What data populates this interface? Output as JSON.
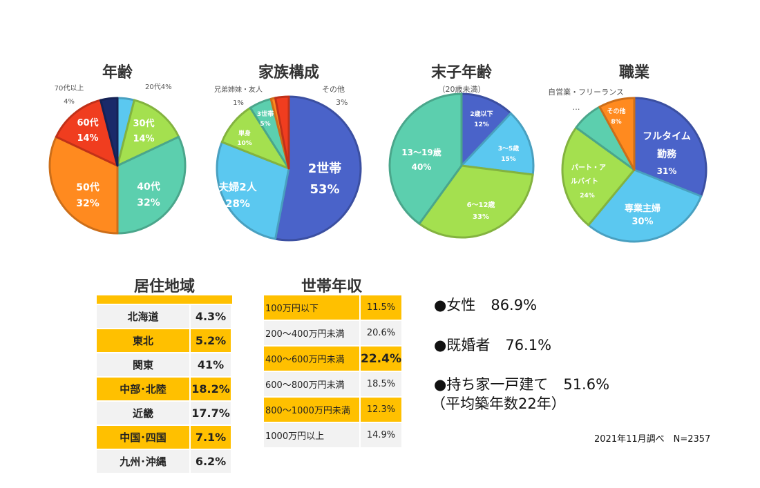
{
  "chart_data": [
    {
      "type": "pie",
      "title": "年齢",
      "slices": [
        {
          "label": "20代",
          "value": 4,
          "pct": "4%",
          "color": "#5bc8f0"
        },
        {
          "label": "30代",
          "value": 14,
          "pct": "14%",
          "color": "#a4e04f"
        },
        {
          "label": "40代",
          "value": 32,
          "pct": "32%",
          "color": "#5ccfae"
        },
        {
          "label": "50代",
          "value": 32,
          "pct": "32%",
          "color": "#ff8a1f"
        },
        {
          "label": "60代",
          "value": 14,
          "pct": "14%",
          "color": "#f03d1f"
        },
        {
          "label": "70代以上",
          "value": 4,
          "pct": "4%",
          "color": "#1a2a6a"
        }
      ]
    },
    {
      "type": "pie",
      "title": "家族構成",
      "slices": [
        {
          "label": "2世帯",
          "value": 53,
          "pct": "53%",
          "color": "#4a63c9"
        },
        {
          "label": "夫婦2人",
          "value": 28,
          "pct": "28%",
          "color": "#5bc8f0"
        },
        {
          "label": "単身",
          "value": 10,
          "pct": "10%",
          "color": "#a4e04f"
        },
        {
          "label": "3世帯",
          "value": 5,
          "pct": "5%",
          "color": "#5ccfae"
        },
        {
          "label": "兄弟姉妹・友人",
          "value": 1,
          "pct": "1%",
          "color": "#ff8a1f"
        },
        {
          "label": "その他",
          "value": 3,
          "pct": "3%",
          "color": "#f03d1f"
        }
      ]
    },
    {
      "type": "pie",
      "title": "末子年齢",
      "subtitle": "（20歳未満）",
      "slices": [
        {
          "label": "2歳以下",
          "value": 12,
          "pct": "12%",
          "color": "#4a63c9"
        },
        {
          "label": "3～5歳",
          "value": 15,
          "pct": "15%",
          "color": "#5bc8f0"
        },
        {
          "label": "6～12歳",
          "value": 33,
          "pct": "33%",
          "color": "#a4e04f"
        },
        {
          "label": "13～19歳",
          "value": 40,
          "pct": "40%",
          "color": "#5ccfae"
        }
      ]
    },
    {
      "type": "pie",
      "title": "職業",
      "slices": [
        {
          "label": "フルタイム勤務",
          "value": 31,
          "pct": "31%",
          "color": "#4a63c9"
        },
        {
          "label": "専業主婦",
          "value": 30,
          "pct": "30%",
          "color": "#5bc8f0"
        },
        {
          "label": "パート・アルバイト",
          "value": 24,
          "pct": "24%",
          "color": "#a4e04f"
        },
        {
          "label": "自営業・フリーランス…",
          "value": 7,
          "pct": "",
          "color": "#5ccfae"
        },
        {
          "label": "その他",
          "value": 8,
          "pct": "8%",
          "color": "#ff8a1f"
        }
      ]
    }
  ],
  "region": {
    "title": "居住地域",
    "rows": [
      {
        "label": "北海道",
        "value": "4.3%"
      },
      {
        "label": "東北",
        "value": "5.2%"
      },
      {
        "label": "関東",
        "value": "41%"
      },
      {
        "label": "中部･北陸",
        "value": "18.2%"
      },
      {
        "label": "近畿",
        "value": "17.7%"
      },
      {
        "label": "中国･四国",
        "value": "7.1%"
      },
      {
        "label": "九州･沖縄",
        "value": "6.2%"
      }
    ]
  },
  "income": {
    "title": "世帯年収",
    "rows": [
      {
        "label": "100万円以下",
        "value": "11.5%"
      },
      {
        "label": "200～400万円未満",
        "value": "20.6%"
      },
      {
        "label": "400～600万円未満",
        "value": "22.4%"
      },
      {
        "label": "600～800万円未満",
        "value": "18.5%"
      },
      {
        "label": "800～1000万円未満",
        "value": "12.3%"
      },
      {
        "label": "1000万円以上",
        "value": "14.9%"
      }
    ]
  },
  "stats": {
    "female_label": "●女性",
    "female_value": "86.9%",
    "married_label": "●既婚者",
    "married_value": "76.1%",
    "house_label": "●持ち家一戸建て",
    "house_value": "51.6%",
    "house_note": "（平均築年数22年）"
  },
  "footnote": "2021年11月調べ　N=2357"
}
